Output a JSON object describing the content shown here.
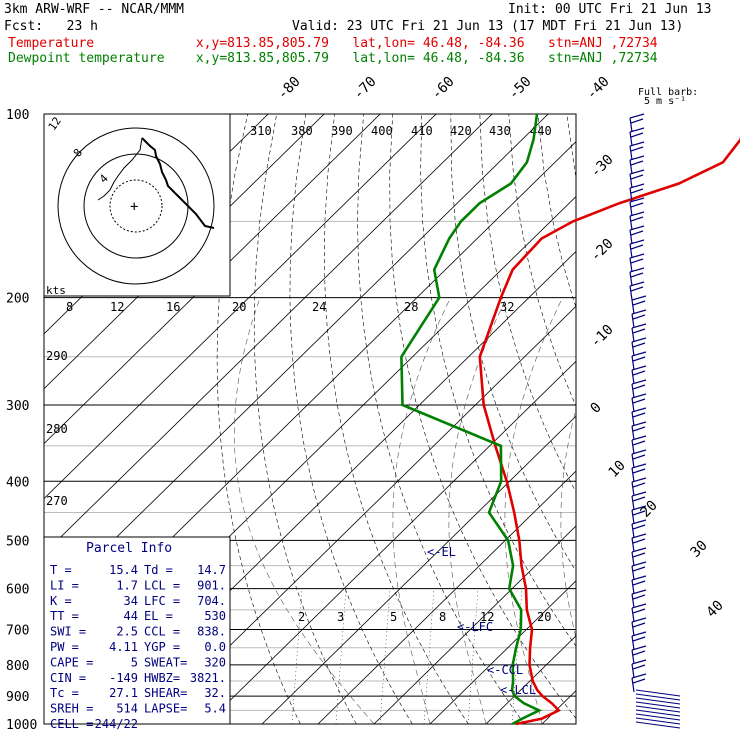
{
  "header": {
    "model": "3km ARW-WRF -- NCAR/MMM",
    "init": "Init: 00 UTC Fri 21 Jun 13",
    "fcst": "Fcst:   23 h",
    "valid": "Valid: 23 UTC Fri 21 Jun 13 (17 MDT Fri 21 Jun 13)",
    "temperature_line": "Temperature             x,y=813.85,805.79   lat,lon= 46.48, -84.36   stn=ANJ ,72734",
    "dewpoint_line": "Dewpoint temperature    x,y=813.85,805.79   lat,lon= 46.48, -84.36   stn=ANJ ,72734"
  },
  "colors": {
    "temperature": "#e00000",
    "dewpoint": "#008000",
    "parcel_text": "#000080",
    "frame": "#000000"
  },
  "chart_data": {
    "type": "line",
    "title": "",
    "yscale": "log",
    "ylim": [
      1000,
      100
    ],
    "pressure_labels": [
      "100",
      "200",
      "300",
      "400",
      "500",
      "600",
      "700",
      "800",
      "900",
      "1000"
    ],
    "pressure_values": [
      100,
      200,
      300,
      400,
      500,
      600,
      700,
      800,
      900,
      1000
    ],
    "isotherm_labels": [
      "-80",
      "-70",
      "-60",
      "-50",
      "-40",
      "-30",
      "-20",
      "-10",
      "0",
      "10",
      "20",
      "30",
      "40"
    ],
    "theta_labels": [
      "310",
      "380",
      "390",
      "400",
      "410",
      "420",
      "430",
      "440"
    ],
    "theta_side_labels": [
      "290",
      "280",
      "270"
    ],
    "mixing_ratio_labels": [
      "2",
      "3",
      "5",
      "8",
      "12",
      "20"
    ],
    "wind_scale_labels": [
      "8",
      "12",
      "16",
      "20",
      "24",
      "28",
      "32"
    ],
    "kts_label": "kts",
    "barb_legend": [
      "Full barb:",
      "5 m s⁻¹"
    ],
    "hodograph_labels": [
      "4",
      "8",
      "12"
    ],
    "level_markers": [
      "<-EL",
      "<-LFC",
      "<-CCL",
      "<-LCL"
    ],
    "series": [
      {
        "name": "Temperature",
        "pressure": [
          1000,
          980,
          950,
          925,
          900,
          880,
          850,
          800,
          750,
          700,
          650,
          600,
          550,
          500,
          450,
          400,
          350,
          300,
          250,
          200,
          180,
          160,
          150,
          140,
          130,
          120,
          110,
          100
        ],
        "values": [
          15.4,
          19.0,
          20.5,
          18.0,
          15.0,
          13.0,
          10.5,
          7.0,
          4.0,
          1.0,
          -3.5,
          -7.5,
          -12.5,
          -17.5,
          -23.5,
          -30.5,
          -39.0,
          -48.5,
          -58.0,
          -65.0,
          -68.0,
          -68.5,
          -66.0,
          -61.0,
          -54.0,
          -50.0,
          -51.0,
          -55.0
        ]
      },
      {
        "name": "Dewpoint temperature",
        "pressure": [
          1000,
          980,
          950,
          925,
          900,
          880,
          850,
          800,
          750,
          700,
          650,
          600,
          550,
          500,
          450,
          400,
          350,
          300,
          250,
          200,
          180,
          160,
          150,
          140,
          130,
          120,
          110,
          100
        ],
        "values": [
          14.7,
          15.5,
          17.0,
          13.0,
          10.0,
          8.5,
          7.0,
          4.0,
          1.5,
          -1.0,
          -4.5,
          -10.5,
          -14.0,
          -19.5,
          -28.0,
          -31.5,
          -38.0,
          -63.0,
          -72.0,
          -76.0,
          -82.0,
          -85.0,
          -86.0,
          -86.0,
          -84.0,
          -85.0,
          -88.0,
          -92.0
        ]
      }
    ]
  },
  "parcel_info": {
    "title": "Parcel Info",
    "rows": [
      [
        "T   =",
        "15.4",
        "Td  =",
        "14.7"
      ],
      [
        "LI  =",
        "1.7",
        "LCL =",
        "901."
      ],
      [
        "K   =",
        "34",
        "LFC =",
        "704."
      ],
      [
        "TT  =",
        "44",
        "EL  =",
        "530"
      ],
      [
        "SWI =",
        "2.5",
        "CCL =",
        "838."
      ],
      [
        "PW  =",
        "4.11",
        "YGP =",
        "0.0"
      ],
      [
        "CAPE =",
        "5",
        "SWEAT=",
        "320"
      ],
      [
        "CIN  =",
        "-149",
        "HWBZ=",
        "3821."
      ],
      [
        "Tc   =",
        "27.1",
        "SHEAR=",
        "32."
      ],
      [
        "SREH =",
        "514",
        "LAPSE=",
        "5.4"
      ],
      [
        "CELL =",
        "244/22",
        "",
        ""
      ]
    ]
  }
}
